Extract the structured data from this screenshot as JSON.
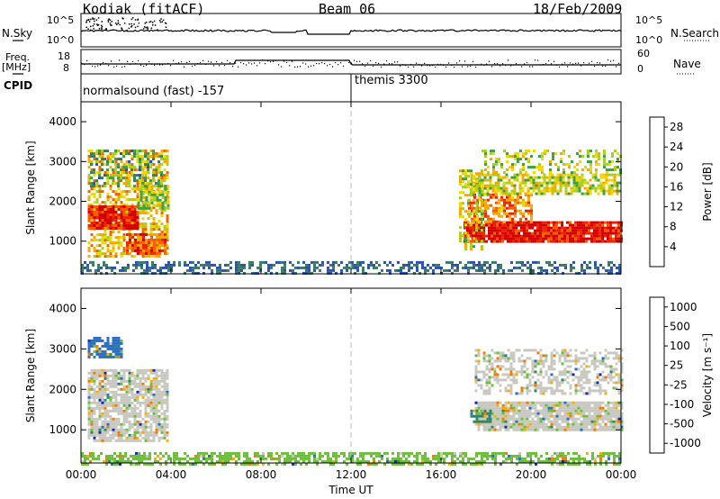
{
  "header": {
    "station": "Kodiak (fitACF)",
    "beam": "Beam 06",
    "date": "18/Feb/2009"
  },
  "strip_labels": {
    "nsky": "N.Sky",
    "nsearch": "N.Search",
    "freq_line1": "Freq.",
    "freq_line2": "[MHz]",
    "nave": "Nave",
    "cpid": "CPID",
    "nsky_ticks": [
      "10^5",
      "10^0"
    ],
    "nsearch_ticks": [
      "10^5",
      "10^0"
    ],
    "freq_ticks": [
      "18",
      "8"
    ],
    "nave_ticks": [
      "60",
      "0"
    ]
  },
  "cpid_segments": [
    {
      "label": "normalsound (fast) -157",
      "start_hour": 0
    },
    {
      "label": "themis 3300",
      "start_hour": 12
    }
  ],
  "chart_data": [
    {
      "type": "heatmap",
      "panel": "power",
      "ylabel": "Slant Range [km]",
      "xlabel": "Time UT",
      "x_tick_labels": [
        "00:00",
        "04:00",
        "08:00",
        "12:00",
        "16:00",
        "20:00",
        "00:00"
      ],
      "x_ticks_hours": [
        0,
        4,
        8,
        12,
        16,
        20,
        24
      ],
      "xlim_hours": [
        0,
        24
      ],
      "y_tick_labels": [
        "1000",
        "2000",
        "3000",
        "4000"
      ],
      "y_ticks": [
        1000,
        2000,
        3000,
        4000
      ],
      "ylim": [
        180,
        4500
      ],
      "colorbar": {
        "label": "Power [dB]",
        "tick_labels": [
          "4",
          "8",
          "12",
          "16",
          "20",
          "24",
          "28"
        ],
        "range": [
          0,
          30
        ],
        "colors": [
          "#1010e0",
          "#2a50b0",
          "#3a7a62",
          "#3e9e42",
          "#a6d020",
          "#f0d800",
          "#f7a800",
          "#f46000",
          "#ee2400",
          "#d20000"
        ]
      },
      "blobs": [
        {
          "t0": 0.3,
          "t1": 3.9,
          "r0": 600,
          "r1": 3300,
          "mean": 18,
          "cover": 0.55
        },
        {
          "t0": 0.3,
          "t1": 2.5,
          "r0": 1300,
          "r1": 1900,
          "mean": 26,
          "cover": 0.9
        },
        {
          "t0": 2.0,
          "t1": 3.8,
          "r0": 700,
          "r1": 1200,
          "mean": 24,
          "cover": 0.8
        },
        {
          "t0": 2.5,
          "t1": 3.9,
          "r0": 1800,
          "r1": 2400,
          "mean": 14,
          "cover": 0.7
        },
        {
          "t0": 0.4,
          "t1": 3.6,
          "r0": 2400,
          "r1": 3300,
          "mean": 10,
          "cover": 0.35
        },
        {
          "t0": 17.0,
          "t1": 24.0,
          "r0": 1000,
          "r1": 1500,
          "mean": 27,
          "cover": 0.92
        },
        {
          "t0": 17.2,
          "t1": 20.0,
          "r0": 1500,
          "r1": 2200,
          "mean": 22,
          "cover": 0.6
        },
        {
          "t0": 17.3,
          "t1": 24.0,
          "r0": 2200,
          "r1": 2700,
          "mean": 15,
          "cover": 0.7
        },
        {
          "t0": 17.8,
          "t1": 24.0,
          "r0": 2700,
          "r1": 3300,
          "mean": 14,
          "cover": 0.35
        },
        {
          "t0": 16.8,
          "t1": 17.8,
          "r0": 800,
          "r1": 2800,
          "mean": 16,
          "cover": 0.45
        }
      ],
      "ground_band": {
        "r0": 180,
        "r1": 500,
        "mean": 6,
        "cover": 0.45,
        "t0": 0.0,
        "t1": 24.0
      }
    },
    {
      "type": "heatmap",
      "panel": "velocity",
      "ylabel": "Slant Range [km]",
      "xlabel": "Time UT",
      "x_tick_labels": [
        "00:00",
        "04:00",
        "08:00",
        "12:00",
        "16:00",
        "20:00",
        "00:00"
      ],
      "x_ticks_hours": [
        0,
        4,
        8,
        12,
        16,
        20,
        24
      ],
      "xlim_hours": [
        0,
        24
      ],
      "y_tick_labels": [
        "1000",
        "2000",
        "3000",
        "4000"
      ],
      "y_ticks": [
        1000,
        2000,
        3000,
        4000
      ],
      "ylim": [
        180,
        4500
      ],
      "colorbar": {
        "label": "Velocity [m s⁻¹]",
        "tick_labels": [
          "1000",
          "500",
          "100",
          "25",
          "-25",
          "-100",
          "-500",
          "-1000"
        ],
        "colors": [
          "#1a28b0",
          "#2a6ec0",
          "#2e8a5a",
          "#6cbf3a",
          "#c8c8c0",
          "#c8c8c0",
          "#f4b000",
          "#f47a00",
          "#f03000",
          "#e00000"
        ]
      },
      "blobs": [
        {
          "t0": 0.3,
          "t1": 3.9,
          "r0": 700,
          "r1": 2500,
          "mean": 0.5,
          "cover": 0.8
        },
        {
          "t0": 0.3,
          "t1": 1.8,
          "r0": 2800,
          "r1": 3300,
          "mean": 0.15,
          "cover": 0.75
        },
        {
          "t0": 17.5,
          "t1": 24.0,
          "r0": 1000,
          "r1": 1700,
          "mean": 0.5,
          "cover": 0.9
        },
        {
          "t0": 17.5,
          "t1": 24.0,
          "r0": 1900,
          "r1": 3000,
          "mean": 0.5,
          "cover": 0.45
        },
        {
          "t0": 17.3,
          "t1": 18.2,
          "r0": 1200,
          "r1": 1500,
          "mean": 0.25,
          "cover": 0.8
        }
      ],
      "ground_band": {
        "r0": 180,
        "r1": 450,
        "mean": 0.3,
        "cover": 0.6,
        "t0": 0.0,
        "t1": 24.0
      }
    }
  ]
}
